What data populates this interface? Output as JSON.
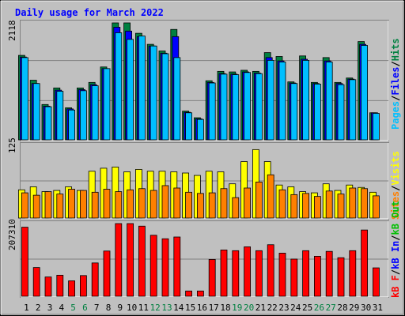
{
  "chart_data": [
    {
      "type": "bar",
      "title": "Daily usage for March 2022",
      "categories": [
        "1",
        "2",
        "3",
        "4",
        "5",
        "6",
        "7",
        "8",
        "9",
        "10",
        "11",
        "12",
        "13",
        "14",
        "15",
        "16",
        "17",
        "18",
        "19",
        "20",
        "21",
        "22",
        "23",
        "24",
        "25",
        "26",
        "27",
        "28",
        "29",
        "30",
        "31"
      ],
      "weekend_days": [
        "5",
        "6",
        "12",
        "13",
        "19",
        "20",
        "26",
        "27"
      ],
      "ymax_label": "2118",
      "ylim": [
        0,
        2118
      ],
      "series": [
        {
          "name": "Hits",
          "color": "#008040",
          "values": [
            1530,
            1080,
            640,
            940,
            580,
            940,
            1040,
            1320,
            2118,
            2118,
            1930,
            1730,
            1610,
            2000,
            520,
            400,
            1070,
            1240,
            1230,
            1260,
            1240,
            1580,
            1510,
            1050,
            1520,
            1040,
            1490,
            1040,
            1120,
            1780,
            490
          ]
        },
        {
          "name": "Files",
          "color": "#0000ff",
          "values": [
            1500,
            1020,
            610,
            900,
            560,
            910,
            1000,
            1290,
            2040,
            1970,
            1870,
            1700,
            1570,
            1870,
            500,
            380,
            1040,
            1200,
            1190,
            1230,
            1210,
            1490,
            1430,
            1030,
            1460,
            1020,
            1430,
            1020,
            1100,
            1730,
            490
          ]
        },
        {
          "name": "Pages",
          "color": "#00bfff",
          "values": [
            1490,
            1020,
            600,
            880,
            540,
            890,
            980,
            1290,
            1940,
            1820,
            1880,
            1700,
            1560,
            1490,
            490,
            370,
            1030,
            1190,
            1180,
            1220,
            1200,
            1440,
            1410,
            1020,
            1440,
            1010,
            1410,
            1000,
            1090,
            1710,
            480
          ]
        }
      ]
    },
    {
      "type": "bar",
      "ymax_label": "125",
      "ylim": [
        0,
        125
      ],
      "series": [
        {
          "name": "Visits",
          "color": "#ffff00",
          "values": [
            47,
            52,
            44,
            46,
            52,
            46,
            78,
            83,
            85,
            77,
            81,
            78,
            78,
            77,
            75,
            71,
            78,
            77,
            57,
            94,
            114,
            94,
            55,
            52,
            44,
            42,
            57,
            46,
            55,
            51,
            43
          ]
        },
        {
          "name": "Sites",
          "color": "#ff8000",
          "values": [
            42,
            38,
            44,
            40,
            48,
            46,
            43,
            48,
            44,
            47,
            49,
            46,
            54,
            50,
            43,
            41,
            42,
            49,
            34,
            50,
            60,
            72,
            47,
            39,
            41,
            36,
            45,
            40,
            50,
            49,
            37
          ]
        }
      ]
    },
    {
      "type": "bar",
      "ymax_label": "207310",
      "ylim": [
        0,
        207310
      ],
      "series": [
        {
          "name": "kB In",
          "color": "#0000ff",
          "values": [],
          "legend_only": true
        },
        {
          "name": "kB Out",
          "color": "#00c000",
          "values": [],
          "legend_only": true
        },
        {
          "name": "kB F",
          "color": "#ff0000",
          "values": [
            197000,
            82000,
            55000,
            60000,
            44000,
            59000,
            95000,
            129000,
            207310,
            207310,
            200000,
            174000,
            164000,
            169000,
            15000,
            15000,
            105000,
            132000,
            130000,
            141000,
            130000,
            147000,
            123000,
            106000,
            130000,
            114000,
            128000,
            110000,
            130000,
            189000,
            81000
          ]
        }
      ]
    }
  ],
  "labels": {
    "title": "Daily usage for March 2022",
    "y1_max": "2118",
    "y2_max": "125",
    "y3_max": "207310",
    "legend1": {
      "pages": "Pages",
      "files": "Files",
      "hits": "Hits",
      "sep": "/"
    },
    "legend2": {
      "sites": "Sites",
      "visits": "Visits",
      "sep": "/"
    },
    "legend3": {
      "kbf": "kB F",
      "kbin": "kB In",
      "kbout": "kB Out",
      "sep": "/"
    }
  },
  "colors": {
    "background": "#c0c0c0",
    "panel": "#c0c0c0",
    "title": "#0000ff",
    "pages": "#00bfff",
    "files": "#0000ff",
    "hits": "#008040",
    "visits": "#ffff00",
    "sites": "#ff8000",
    "kbf": "#ff0000",
    "kbin": "#0000ff",
    "kbout": "#00c000",
    "weekend_label": "#008040",
    "weekday_label": "#000000"
  }
}
